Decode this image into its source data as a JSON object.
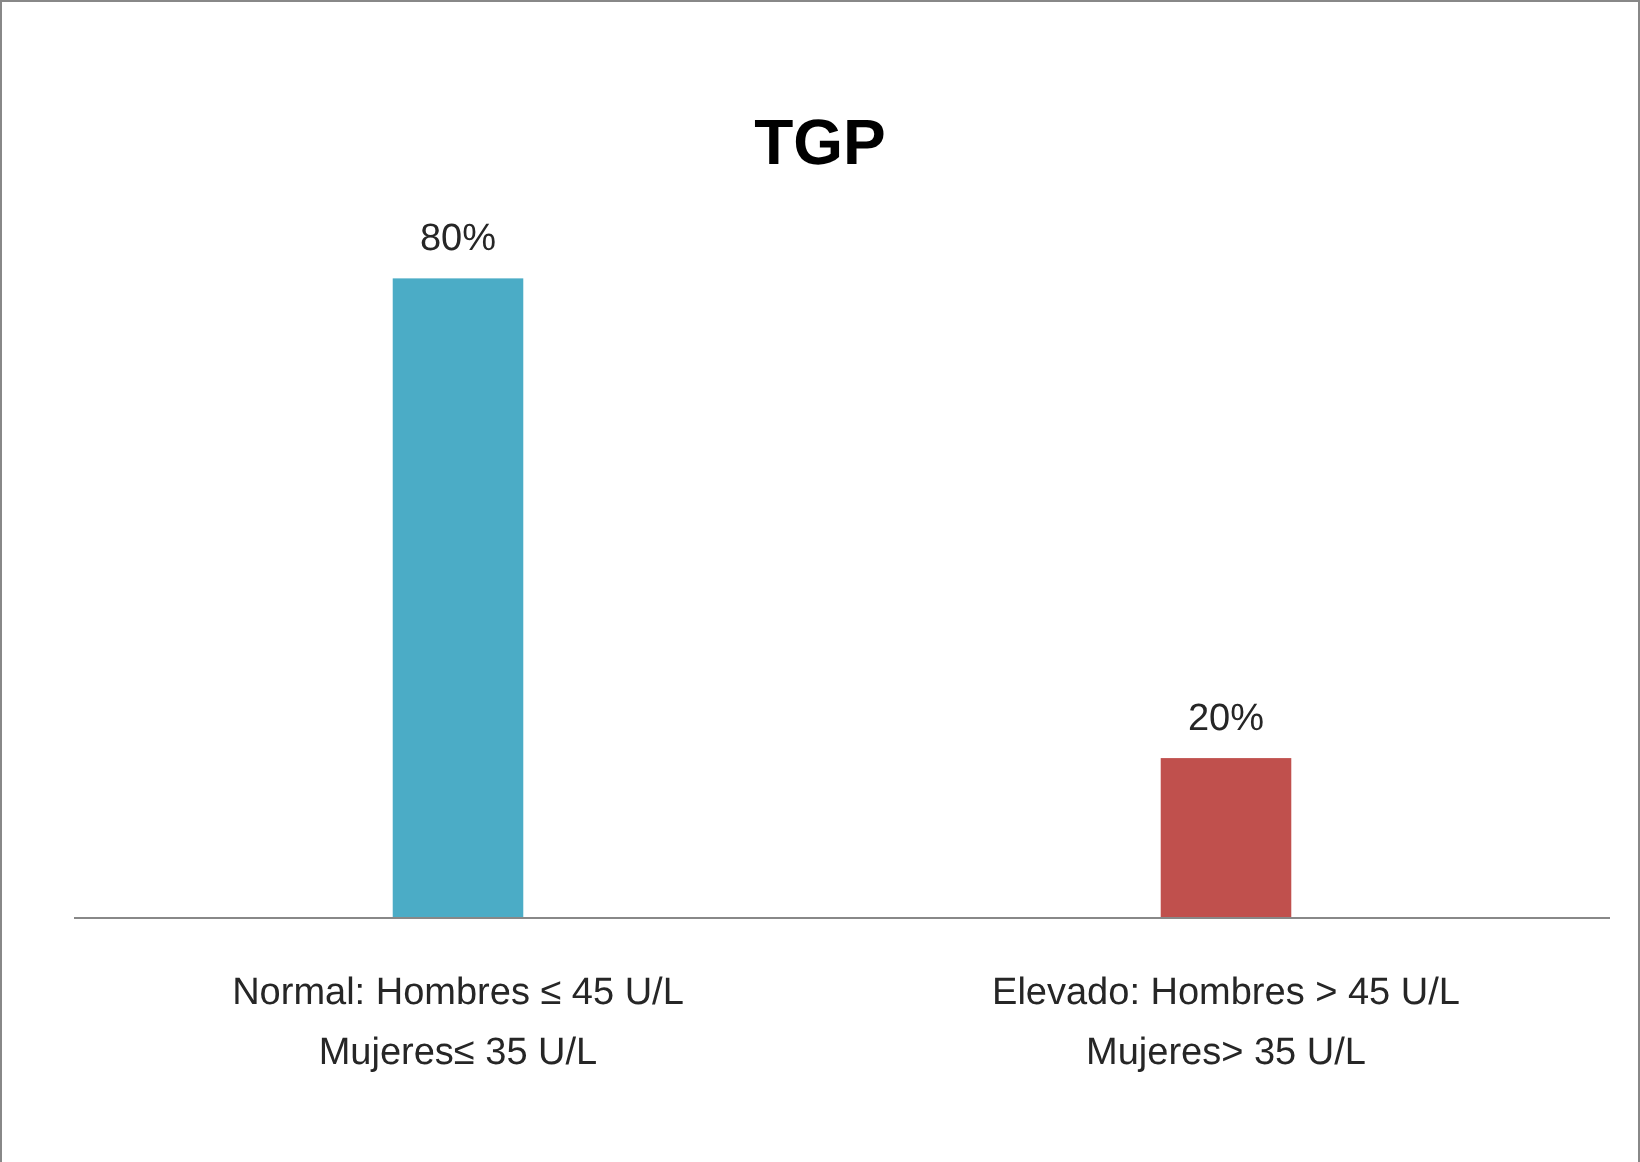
{
  "chart_data": {
    "type": "bar",
    "title": "TGP",
    "categories": [
      "Normal: Hombres ≤ 45 U/L\nMujeres≤ 35 U/L",
      "Elevado: Hombres > 45 U/L\nMujeres> 35 U/L"
    ],
    "values": [
      80,
      20
    ],
    "colors": [
      "#4bacc6",
      "#c0504d"
    ],
    "value_labels": [
      "80%",
      "20%"
    ]
  }
}
